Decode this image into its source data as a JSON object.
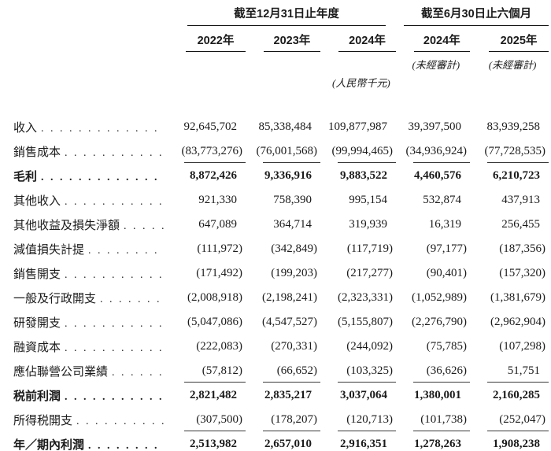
{
  "header": {
    "group1": {
      "title": "截至12月31日止年度",
      "years": [
        "2022年",
        "2023年",
        "2024年"
      ]
    },
    "group2": {
      "title": "截至6月30日止六個月",
      "years": [
        "2024年",
        "2025年"
      ],
      "unaudited_note": "(未經審計)"
    },
    "currency_note": "(人民幣千元)"
  },
  "rows": [
    {
      "label": "收入",
      "values": [
        "92,645,702",
        "85,338,484",
        "109,877,987",
        "39,397,500",
        "83,939,258"
      ]
    },
    {
      "label": "銷售成本",
      "values": [
        "(83,773,276)",
        "(76,001,568)",
        "(99,994,465)",
        "(34,936,924)",
        "(77,728,535)"
      ],
      "rule_below": true
    },
    {
      "label": "毛利",
      "values": [
        "8,872,426",
        "9,336,916",
        "9,883,522",
        "4,460,576",
        "6,210,723"
      ],
      "bold": true
    },
    {
      "label": "其他收入",
      "values": [
        "921,330",
        "758,390",
        "995,154",
        "532,874",
        "437,913"
      ]
    },
    {
      "label": "其他收益及損失淨額",
      "values": [
        "647,089",
        "364,714",
        "319,939",
        "16,319",
        "256,455"
      ]
    },
    {
      "label": "減值損失計提",
      "values": [
        "(111,972)",
        "(342,849)",
        "(117,719)",
        "(97,177)",
        "(187,356)"
      ]
    },
    {
      "label": "銷售開支",
      "values": [
        "(171,492)",
        "(199,203)",
        "(217,277)",
        "(90,401)",
        "(157,320)"
      ]
    },
    {
      "label": "一般及行政開支",
      "values": [
        "(2,008,918)",
        "(2,198,241)",
        "(2,323,331)",
        "(1,052,989)",
        "(1,381,679)"
      ]
    },
    {
      "label": "研發開支",
      "values": [
        "(5,047,086)",
        "(4,547,527)",
        "(5,155,807)",
        "(2,276,790)",
        "(2,962,904)"
      ]
    },
    {
      "label": "融資成本",
      "values": [
        "(222,083)",
        "(270,331)",
        "(244,092)",
        "(75,785)",
        "(107,298)"
      ]
    },
    {
      "label": "應佔聯營公司業績",
      "values": [
        "(57,812)",
        "(66,652)",
        "(103,325)",
        "(36,626)",
        "51,751"
      ],
      "rule_below": true
    },
    {
      "label": "税前利潤",
      "values": [
        "2,821,482",
        "2,835,217",
        "3,037,064",
        "1,380,001",
        "2,160,285"
      ],
      "bold": true
    },
    {
      "label": "所得税開支",
      "values": [
        "(307,500)",
        "(178,207)",
        "(120,713)",
        "(101,738)",
        "(252,047)"
      ],
      "rule_below": true
    },
    {
      "label": "年／期內利潤",
      "values": [
        "2,513,982",
        "2,657,010",
        "2,916,351",
        "1,278,263",
        "1,908,238"
      ],
      "bold": true,
      "rule_below": true
    }
  ]
}
